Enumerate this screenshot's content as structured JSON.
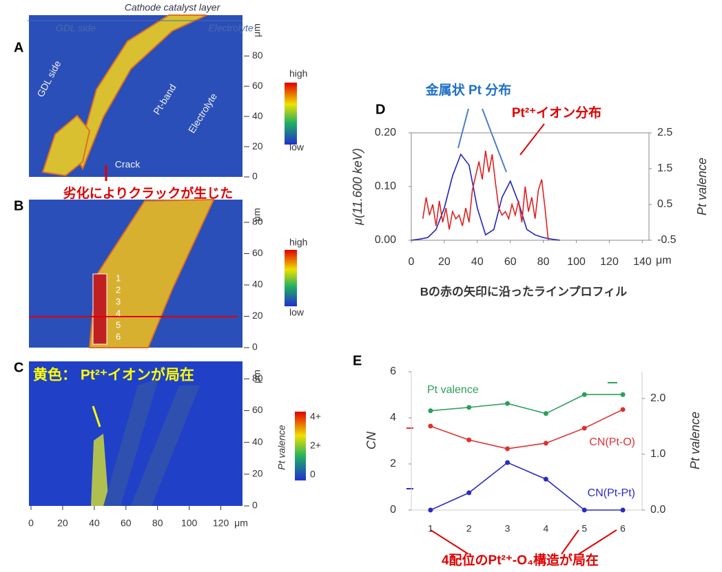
{
  "panels": [
    {
      "label": "A",
      "header": [
        "Cathode catalyst layer",
        "GDL side",
        "Electrolyte"
      ],
      "annotations": [
        "GDL side",
        "Pt-band",
        "Electrolyte",
        "Crack"
      ],
      "caption": "劣化によりクラックが生じた",
      "ylim": [
        0,
        107
      ],
      "yticks": [
        0,
        20,
        40,
        60,
        80
      ],
      "unit": "μm",
      "colorbar": [
        "high",
        "low"
      ]
    },
    {
      "label": "B",
      "ylim": [
        0,
        94.5
      ],
      "yticks": [
        0,
        20,
        40,
        60,
        80
      ],
      "unit": "μm",
      "colorbar": [
        "high",
        "low"
      ],
      "regions": [
        "1",
        "2",
        "3",
        "4",
        "5",
        "6"
      ]
    },
    {
      "label": "C",
      "caption": "黄色： Pt²⁺イオンが局在",
      "ylim": [
        0,
        91
      ],
      "yticks": [
        0,
        20,
        40,
        60,
        80
      ],
      "unit": "μm",
      "colorbar": [
        "4+",
        "2+",
        "0"
      ],
      "colorbar_label": "Pt valence",
      "xlim": [
        0,
        135
      ],
      "xticks": [
        0,
        20,
        40,
        60,
        80,
        100,
        120
      ],
      "xunit": "μm"
    }
  ],
  "chart_data": [
    {
      "type": "line",
      "label": "D",
      "xlim": [
        0,
        144
      ],
      "xticks": [
        0,
        20,
        40,
        60,
        80,
        100,
        120,
        140
      ],
      "xunit": "μm",
      "ylim": [
        0,
        0.2
      ],
      "yticks": [
        {
          "value": 0,
          "label": "0.00"
        },
        {
          "value": 0.1,
          "label": "0.10"
        },
        {
          "value": 0.2,
          "label": "0.20"
        }
      ],
      "y2lim": [
        -0.5,
        2.5
      ],
      "y2ticks": [
        -0.5,
        0.5,
        1.5,
        2.5
      ],
      "y_label": "μ(11.600 keV)",
      "y2_label": "Pt valence",
      "x_label": "Bの赤の矢印に沿ったラインプロフィル",
      "annotations": [
        "金属状 Pt 分布",
        "Pt²⁺イオン分布"
      ],
      "series": [
        {
          "color": "#2020c0",
          "x": [
            0,
            5,
            10,
            15,
            20,
            25,
            30,
            35,
            40,
            45,
            50,
            55,
            60,
            65,
            70,
            75,
            80,
            85,
            90
          ],
          "values": [
            0,
            0.002,
            0.005,
            0.02,
            0.06,
            0.12,
            0.16,
            0.14,
            0.06,
            0.01,
            0.02,
            0.08,
            0.11,
            0.07,
            0.02,
            0.01,
            0.005,
            0.002,
            0
          ]
        },
        {
          "color": "#e02020",
          "axis": "y2",
          "x": [
            7,
            9,
            11,
            13,
            15,
            17,
            19,
            21,
            23,
            25,
            27,
            29,
            31,
            33,
            35,
            37,
            39,
            41,
            43,
            45,
            47,
            49,
            51,
            53,
            55,
            57,
            59,
            61,
            63,
            65,
            67,
            69,
            71,
            73,
            75,
            77,
            79,
            81,
            83
          ],
          "values": [
            0.1,
            0.7,
            0.2,
            0.5,
            -0.1,
            0.6,
            0.0,
            0.4,
            -0.2,
            0.3,
            0.1,
            0.2,
            -0.1,
            0.4,
            0.0,
            0.9,
            1.3,
            1.7,
            1.2,
            2.0,
            1.4,
            1.9,
            1.1,
            0.4,
            0.2,
            0.3,
            0.1,
            0.5,
            0.2,
            0.6,
            0.0,
            1.0,
            0.3,
            0.7,
            0.1,
            0.9,
            1.2,
            0.4,
            -0.5
          ]
        }
      ]
    },
    {
      "type": "line",
      "label": "E",
      "categories": [
        "1",
        "2",
        "3",
        "4",
        "5",
        "6"
      ],
      "ylim": [
        0,
        6
      ],
      "yticks": [
        0,
        2,
        4,
        6
      ],
      "y2lim": [
        0,
        2.48
      ],
      "y2ticks": [
        {
          "value": 0,
          "label": "0.0"
        },
        {
          "value": 1,
          "label": "1.0"
        },
        {
          "value": 2,
          "label": "2.0"
        }
      ],
      "y_label": "CN",
      "y2_label": "Pt valence",
      "annotations": [
        "4配位のPt²⁺-O₄構造が局在"
      ],
      "markers": true,
      "series": [
        {
          "name": "Pt valence",
          "color": "#2ca05a",
          "axis": "y2",
          "values": [
            1.78,
            1.84,
            1.91,
            1.73,
            2.07,
            2.07
          ]
        },
        {
          "name": "CN(Pt-O)",
          "color": "#e03030",
          "values": [
            3.64,
            3.04,
            2.66,
            2.9,
            3.55,
            4.36
          ]
        },
        {
          "name": "CN(Pt-Pt)",
          "color": "#2a2ac8",
          "values": [
            0,
            0.75,
            2.06,
            1.34,
            0,
            0
          ]
        }
      ]
    }
  ]
}
